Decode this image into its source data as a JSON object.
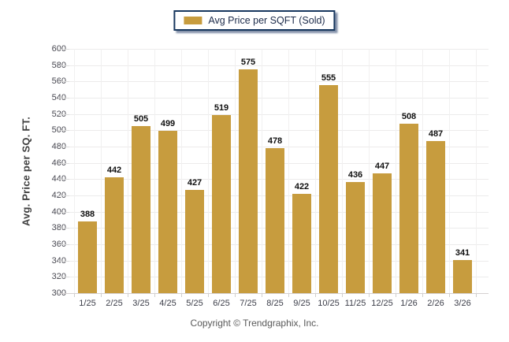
{
  "legend": {
    "label": "Avg Price per SQFT (Sold)",
    "swatch_color": "#C79C3E"
  },
  "footer": {
    "copyright": "Copyright © Trendgraphix, Inc."
  },
  "chart_data": {
    "type": "bar",
    "title": "",
    "xlabel": "",
    "ylabel": "Avg. Price per SQ. FT.",
    "series_name": "Avg Price per SQFT (Sold)",
    "categories": [
      "1/25",
      "2/25",
      "3/25",
      "4/25",
      "5/25",
      "6/25",
      "7/25",
      "8/25",
      "9/25",
      "10/25",
      "11/25",
      "12/25",
      "1/26",
      "2/26",
      "3/26"
    ],
    "values": [
      388,
      442,
      505,
      499,
      427,
      519,
      575,
      478,
      422,
      555,
      436,
      447,
      508,
      487,
      341
    ],
    "ylim": [
      300,
      600
    ],
    "ytick_step": 20,
    "yticks": [
      "600",
      "580",
      "560",
      "540",
      "520",
      "500",
      "480",
      "460",
      "440",
      "420",
      "400",
      "380",
      "360",
      "340",
      "320",
      "300"
    ],
    "grid": "horizontal-light",
    "legend_position": "top-center",
    "bar_color": "#C79C3E",
    "value_labels": "above-bars"
  }
}
